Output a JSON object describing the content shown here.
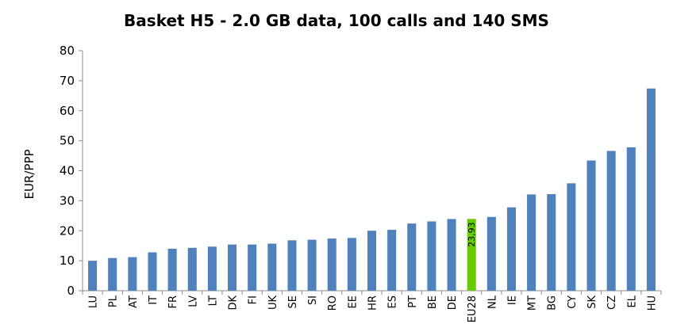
{
  "chart_data": {
    "type": "bar",
    "title": "Basket H5 - 2.0 GB data, 100 calls and 140 SMS",
    "xlabel": "",
    "ylabel": "EUR/PPP",
    "ylim": [
      0,
      80
    ],
    "yticks": [
      0,
      10,
      20,
      30,
      40,
      50,
      60,
      70,
      80
    ],
    "grid": false,
    "legend": "none",
    "colors": {
      "bar": "#4f81bd",
      "highlight": "#66cc00"
    },
    "highlight_category": "EU28",
    "categories": [
      "LU",
      "PL",
      "AT",
      "IT",
      "FR",
      "LV",
      "LT",
      "DK",
      "FI",
      "UK",
      "SE",
      "SI",
      "RO",
      "EE",
      "HR",
      "ES",
      "PT",
      "BE",
      "DE",
      "EU28",
      "NL",
      "IE",
      "MT",
      "BG",
      "CY",
      "SK",
      "CZ",
      "EL",
      "HU"
    ],
    "values": [
      10.0,
      10.9,
      11.2,
      12.8,
      14.0,
      14.3,
      14.7,
      15.4,
      15.4,
      15.7,
      16.8,
      17.0,
      17.4,
      17.6,
      20.0,
      20.3,
      22.4,
      23.1,
      23.9,
      23.93,
      24.6,
      27.8,
      32.1,
      32.2,
      35.8,
      43.4,
      46.6,
      47.8,
      67.4
    ],
    "data_labels": [
      {
        "category": "EU28",
        "text": "23,93"
      }
    ]
  }
}
